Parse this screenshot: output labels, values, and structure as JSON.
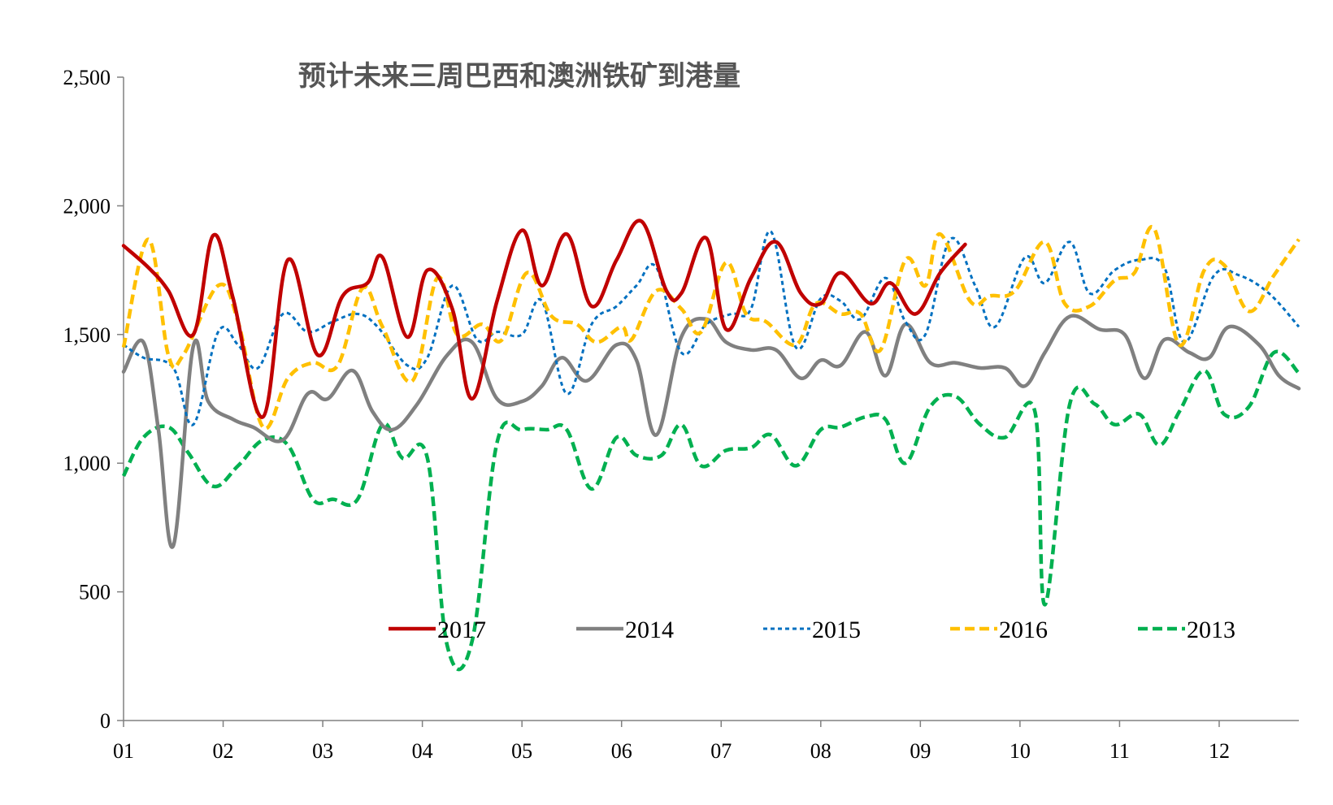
{
  "chart_data": {
    "type": "line",
    "title": "预计未来三周巴西和澳洲铁矿到港量",
    "xlabel": "",
    "ylabel": "",
    "ylim": [
      0,
      2500
    ],
    "yticks": [
      0,
      500,
      1000,
      1500,
      2000,
      2500
    ],
    "ytick_labels": [
      "0",
      "500",
      "1,000",
      "1,500",
      "2,000",
      "2,500"
    ],
    "categories": [
      "01",
      "02",
      "03",
      "04",
      "05",
      "06",
      "07",
      "08",
      "09",
      "10",
      "11",
      "12"
    ],
    "x_unit": "month index (1.0 = start of 01; axis spans 1.0 to 12.8)",
    "xlim": [
      1.0,
      12.8
    ],
    "grid": false,
    "legend_position": "bottom-inside",
    "series": [
      {
        "name": "2017",
        "color": "#c00000",
        "dash": "solid",
        "points": [
          [
            1.0,
            1845
          ],
          [
            1.25,
            1760
          ],
          [
            1.45,
            1670
          ],
          [
            1.7,
            1500
          ],
          [
            1.9,
            1885
          ],
          [
            2.1,
            1640
          ],
          [
            2.4,
            1180
          ],
          [
            2.65,
            1790
          ],
          [
            2.95,
            1420
          ],
          [
            3.2,
            1650
          ],
          [
            3.45,
            1700
          ],
          [
            3.6,
            1800
          ],
          [
            3.85,
            1490
          ],
          [
            4.05,
            1750
          ],
          [
            4.3,
            1600
          ],
          [
            4.5,
            1250
          ],
          [
            4.75,
            1630
          ],
          [
            5.0,
            1905
          ],
          [
            5.2,
            1690
          ],
          [
            5.45,
            1890
          ],
          [
            5.7,
            1610
          ],
          [
            5.95,
            1790
          ],
          [
            6.2,
            1940
          ],
          [
            6.45,
            1670
          ],
          [
            6.6,
            1660
          ],
          [
            6.85,
            1875
          ],
          [
            7.05,
            1520
          ],
          [
            7.3,
            1720
          ],
          [
            7.55,
            1860
          ],
          [
            7.8,
            1660
          ],
          [
            8.0,
            1620
          ],
          [
            8.2,
            1740
          ],
          [
            8.5,
            1620
          ],
          [
            8.7,
            1700
          ],
          [
            8.95,
            1580
          ],
          [
            9.2,
            1740
          ],
          [
            9.45,
            1850
          ]
        ]
      },
      {
        "name": "2014",
        "color": "#808080",
        "dash": "solid",
        "points": [
          [
            1.0,
            1355
          ],
          [
            1.2,
            1470
          ],
          [
            1.35,
            1130
          ],
          [
            1.5,
            680
          ],
          [
            1.7,
            1455
          ],
          [
            1.85,
            1240
          ],
          [
            2.1,
            1170
          ],
          [
            2.3,
            1140
          ],
          [
            2.6,
            1090
          ],
          [
            2.85,
            1270
          ],
          [
            3.05,
            1250
          ],
          [
            3.3,
            1360
          ],
          [
            3.5,
            1200
          ],
          [
            3.7,
            1130
          ],
          [
            3.95,
            1230
          ],
          [
            4.25,
            1420
          ],
          [
            4.5,
            1470
          ],
          [
            4.75,
            1250
          ],
          [
            5.0,
            1240
          ],
          [
            5.2,
            1300
          ],
          [
            5.4,
            1410
          ],
          [
            5.65,
            1320
          ],
          [
            5.95,
            1460
          ],
          [
            6.15,
            1400
          ],
          [
            6.35,
            1110
          ],
          [
            6.6,
            1490
          ],
          [
            6.85,
            1560
          ],
          [
            7.05,
            1470
          ],
          [
            7.3,
            1440
          ],
          [
            7.55,
            1440
          ],
          [
            7.8,
            1330
          ],
          [
            8.0,
            1400
          ],
          [
            8.2,
            1380
          ],
          [
            8.45,
            1510
          ],
          [
            8.65,
            1340
          ],
          [
            8.85,
            1540
          ],
          [
            9.1,
            1390
          ],
          [
            9.35,
            1390
          ],
          [
            9.6,
            1370
          ],
          [
            9.85,
            1370
          ],
          [
            10.05,
            1300
          ],
          [
            10.25,
            1430
          ],
          [
            10.5,
            1570
          ],
          [
            10.8,
            1520
          ],
          [
            11.05,
            1500
          ],
          [
            11.25,
            1330
          ],
          [
            11.45,
            1480
          ],
          [
            11.7,
            1430
          ],
          [
            11.9,
            1410
          ],
          [
            12.1,
            1530
          ],
          [
            12.4,
            1460
          ],
          [
            12.6,
            1340
          ],
          [
            12.8,
            1290
          ]
        ]
      },
      {
        "name": "2015",
        "color": "#0070c0",
        "dash": "short",
        "points": [
          [
            1.0,
            1460
          ],
          [
            1.2,
            1410
          ],
          [
            1.5,
            1370
          ],
          [
            1.7,
            1150
          ],
          [
            1.95,
            1510
          ],
          [
            2.15,
            1460
          ],
          [
            2.35,
            1370
          ],
          [
            2.6,
            1580
          ],
          [
            2.85,
            1510
          ],
          [
            3.1,
            1550
          ],
          [
            3.35,
            1580
          ],
          [
            3.55,
            1530
          ],
          [
            3.85,
            1380
          ],
          [
            4.05,
            1410
          ],
          [
            4.3,
            1690
          ],
          [
            4.55,
            1480
          ],
          [
            4.75,
            1510
          ],
          [
            5.0,
            1500
          ],
          [
            5.2,
            1630
          ],
          [
            5.45,
            1270
          ],
          [
            5.7,
            1540
          ],
          [
            5.95,
            1610
          ],
          [
            6.15,
            1690
          ],
          [
            6.35,
            1760
          ],
          [
            6.6,
            1430
          ],
          [
            6.85,
            1540
          ],
          [
            7.1,
            1580
          ],
          [
            7.3,
            1600
          ],
          [
            7.5,
            1900
          ],
          [
            7.75,
            1450
          ],
          [
            8.0,
            1640
          ],
          [
            8.2,
            1630
          ],
          [
            8.4,
            1560
          ],
          [
            8.65,
            1720
          ],
          [
            8.85,
            1550
          ],
          [
            9.05,
            1500
          ],
          [
            9.3,
            1870
          ],
          [
            9.55,
            1690
          ],
          [
            9.75,
            1530
          ],
          [
            10.05,
            1800
          ],
          [
            10.25,
            1700
          ],
          [
            10.5,
            1860
          ],
          [
            10.7,
            1660
          ],
          [
            10.95,
            1750
          ],
          [
            11.2,
            1790
          ],
          [
            11.45,
            1760
          ],
          [
            11.65,
            1470
          ],
          [
            11.95,
            1730
          ],
          [
            12.2,
            1730
          ],
          [
            12.5,
            1660
          ],
          [
            12.8,
            1530
          ]
        ]
      },
      {
        "name": "2016",
        "color": "#ffc000",
        "dash": "long",
        "points": [
          [
            1.0,
            1450
          ],
          [
            1.25,
            1870
          ],
          [
            1.45,
            1420
          ],
          [
            1.6,
            1420
          ],
          [
            1.95,
            1690
          ],
          [
            2.15,
            1550
          ],
          [
            2.4,
            1140
          ],
          [
            2.65,
            1330
          ],
          [
            2.9,
            1390
          ],
          [
            3.15,
            1380
          ],
          [
            3.4,
            1680
          ],
          [
            3.6,
            1530
          ],
          [
            3.9,
            1320
          ],
          [
            4.15,
            1720
          ],
          [
            4.35,
            1500
          ],
          [
            4.6,
            1540
          ],
          [
            4.8,
            1480
          ],
          [
            5.05,
            1740
          ],
          [
            5.3,
            1570
          ],
          [
            5.55,
            1540
          ],
          [
            5.75,
            1470
          ],
          [
            6.0,
            1530
          ],
          [
            6.1,
            1480
          ],
          [
            6.35,
            1670
          ],
          [
            6.6,
            1600
          ],
          [
            6.8,
            1510
          ],
          [
            7.05,
            1780
          ],
          [
            7.25,
            1580
          ],
          [
            7.45,
            1550
          ],
          [
            7.75,
            1460
          ],
          [
            7.95,
            1620
          ],
          [
            8.2,
            1580
          ],
          [
            8.4,
            1580
          ],
          [
            8.6,
            1440
          ],
          [
            8.85,
            1790
          ],
          [
            9.05,
            1690
          ],
          [
            9.2,
            1890
          ],
          [
            9.5,
            1630
          ],
          [
            9.7,
            1650
          ],
          [
            9.95,
            1670
          ],
          [
            10.25,
            1860
          ],
          [
            10.45,
            1620
          ],
          [
            10.7,
            1610
          ],
          [
            10.95,
            1710
          ],
          [
            11.15,
            1740
          ],
          [
            11.35,
            1910
          ],
          [
            11.6,
            1460
          ],
          [
            11.85,
            1750
          ],
          [
            12.05,
            1770
          ],
          [
            12.3,
            1590
          ],
          [
            12.55,
            1730
          ],
          [
            12.8,
            1870
          ]
        ]
      },
      {
        "name": "2013",
        "color": "#00b050",
        "dash": "long",
        "points": [
          [
            1.0,
            950
          ],
          [
            1.2,
            1100
          ],
          [
            1.45,
            1140
          ],
          [
            1.65,
            1040
          ],
          [
            1.9,
            910
          ],
          [
            2.15,
            990
          ],
          [
            2.4,
            1090
          ],
          [
            2.65,
            1070
          ],
          [
            2.9,
            860
          ],
          [
            3.1,
            860
          ],
          [
            3.35,
            860
          ],
          [
            3.6,
            1150
          ],
          [
            3.8,
            1020
          ],
          [
            4.05,
            1020
          ],
          [
            4.25,
            290
          ],
          [
            4.5,
            310
          ],
          [
            4.75,
            1080
          ],
          [
            5.0,
            1130
          ],
          [
            5.25,
            1130
          ],
          [
            5.45,
            1130
          ],
          [
            5.7,
            900
          ],
          [
            5.95,
            1100
          ],
          [
            6.15,
            1030
          ],
          [
            6.4,
            1030
          ],
          [
            6.6,
            1150
          ],
          [
            6.8,
            990
          ],
          [
            7.05,
            1050
          ],
          [
            7.3,
            1060
          ],
          [
            7.5,
            1110
          ],
          [
            7.75,
            990
          ],
          [
            8.0,
            1130
          ],
          [
            8.2,
            1140
          ],
          [
            8.45,
            1180
          ],
          [
            8.65,
            1170
          ],
          [
            8.85,
            1000
          ],
          [
            9.1,
            1220
          ],
          [
            9.35,
            1260
          ],
          [
            9.6,
            1150
          ],
          [
            9.85,
            1100
          ],
          [
            10.15,
            1200
          ],
          [
            10.25,
            450
          ],
          [
            10.5,
            1230
          ],
          [
            10.75,
            1230
          ],
          [
            10.95,
            1150
          ],
          [
            11.2,
            1190
          ],
          [
            11.4,
            1070
          ],
          [
            11.6,
            1200
          ],
          [
            11.85,
            1360
          ],
          [
            12.05,
            1190
          ],
          [
            12.3,
            1220
          ],
          [
            12.55,
            1430
          ],
          [
            12.8,
            1350
          ]
        ]
      }
    ],
    "legend_order": [
      "2017",
      "2014",
      "2015",
      "2016",
      "2013"
    ]
  }
}
